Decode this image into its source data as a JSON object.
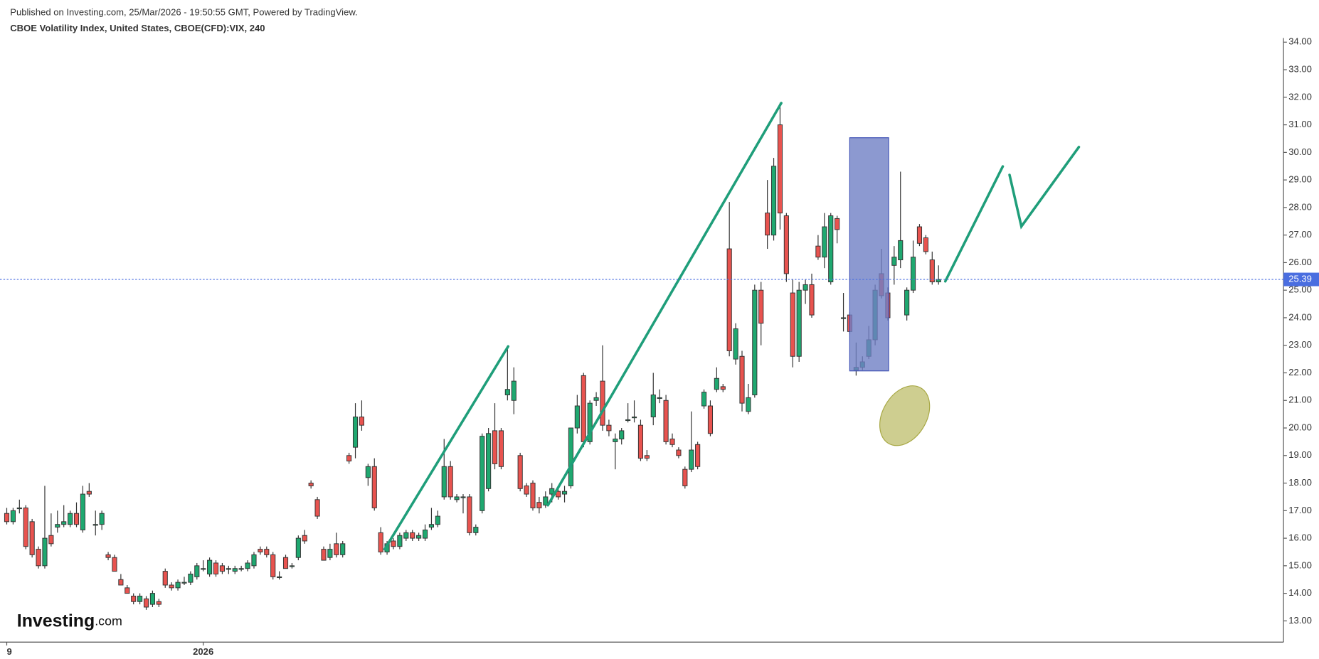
{
  "header": {
    "published": "Published on Investing.com, 25/Mar/2026 - 19:50:55 GMT, Powered by TradingView.",
    "symbol": "CBOE Volatility Index, United States, CBOE(CFD):VIX, 240"
  },
  "logo": {
    "name": "Investing",
    "suffix": ".com"
  },
  "chart_data": {
    "type": "candlestick",
    "up_color": "#1fa870",
    "down_color": "#e8534f",
    "last_price": 25.39,
    "last_price_color": "#4a6ee0",
    "ylim": [
      12.23,
      34.15
    ],
    "yticks": [
      {
        "value": 13,
        "label": "13.00"
      },
      {
        "value": 14,
        "label": "14.00"
      },
      {
        "value": 15,
        "label": "15.00"
      },
      {
        "value": 16,
        "label": "16.00"
      },
      {
        "value": 17,
        "label": "17.00"
      },
      {
        "value": 18,
        "label": "18.00"
      },
      {
        "value": 19,
        "label": "19.00"
      },
      {
        "value": 20,
        "label": "20.00"
      },
      {
        "value": 21,
        "label": "21.00"
      },
      {
        "value": 22,
        "label": "22.00"
      },
      {
        "value": 23,
        "label": "23.00"
      },
      {
        "value": 24,
        "label": "24.00"
      },
      {
        "value": 25,
        "label": "25.00"
      },
      {
        "value": 26,
        "label": "26.00"
      },
      {
        "value": 27,
        "label": "27.00"
      },
      {
        "value": 28,
        "label": "28.00"
      },
      {
        "value": 29,
        "label": "29.00"
      },
      {
        "value": 30,
        "label": "30.00"
      },
      {
        "value": 31,
        "label": "31.00"
      },
      {
        "value": 32,
        "label": "32.00"
      },
      {
        "value": 33,
        "label": "33.00"
      },
      {
        "value": 34,
        "label": "34.00"
      }
    ],
    "categories": [
      "9",
      null,
      null,
      null,
      null,
      null,
      null,
      null,
      null,
      null,
      null,
      null,
      null,
      null,
      null,
      null,
      null,
      null,
      null,
      null,
      null,
      null,
      null,
      null,
      null,
      null,
      null,
      null,
      null,
      null,
      null,
      "2026",
      null,
      null,
      null,
      null,
      null,
      null,
      null,
      null,
      null,
      null,
      null,
      null,
      null,
      null,
      null,
      null,
      null,
      null,
      null,
      null,
      null,
      null,
      null,
      null,
      null,
      null,
      null,
      null,
      null,
      null,
      null,
      null,
      null,
      null,
      null,
      null,
      null,
      null,
      null,
      null,
      null,
      null,
      null,
      null,
      null,
      null,
      null,
      null,
      null,
      null,
      null,
      null,
      null,
      null,
      null,
      null,
      null,
      null,
      null,
      null,
      null,
      null,
      null,
      null,
      null,
      null,
      null,
      null,
      null,
      null,
      null,
      null,
      null,
      null,
      null,
      null,
      null,
      null,
      null,
      null,
      null,
      null,
      null,
      null,
      null,
      null,
      null,
      null,
      null,
      null,
      null,
      null,
      null,
      null,
      null,
      null,
      null,
      null,
      null,
      null,
      null,
      null,
      null,
      null,
      null,
      null,
      null,
      null,
      null,
      null,
      null,
      null,
      null,
      null,
      null,
      null
    ],
    "ohlc": [
      [
        16.9,
        17.1,
        16.5,
        16.6
      ],
      [
        16.6,
        17.1,
        16.5,
        17.0
      ],
      [
        17.1,
        17.4,
        16.9,
        17.1
      ],
      [
        17.1,
        17.2,
        15.6,
        15.7
      ],
      [
        16.6,
        16.7,
        15.3,
        15.4
      ],
      [
        15.6,
        15.7,
        14.9,
        15.0
      ],
      [
        15.0,
        17.9,
        14.9,
        16.0
      ],
      [
        16.1,
        16.9,
        15.7,
        15.8
      ],
      [
        16.4,
        17.0,
        16.2,
        16.5
      ],
      [
        16.5,
        17.2,
        16.4,
        16.6
      ],
      [
        16.5,
        17.0,
        16.4,
        16.9
      ],
      [
        16.9,
        17.3,
        16.4,
        16.5
      ],
      [
        16.3,
        17.9,
        16.2,
        17.6
      ],
      [
        17.7,
        18.0,
        17.5,
        17.6
      ],
      [
        16.5,
        17.0,
        16.1,
        16.5
      ],
      [
        16.5,
        17.0,
        16.3,
        16.9
      ],
      [
        15.4,
        15.5,
        15.2,
        15.3
      ],
      [
        15.3,
        15.4,
        14.8,
        14.8
      ],
      [
        14.5,
        14.7,
        14.3,
        14.3
      ],
      [
        14.2,
        14.3,
        14.0,
        14.0
      ],
      [
        13.9,
        14.0,
        13.6,
        13.7
      ],
      [
        13.7,
        14.0,
        13.6,
        13.9
      ],
      [
        13.8,
        13.9,
        13.4,
        13.5
      ],
      [
        13.6,
        14.1,
        13.5,
        14.0
      ],
      [
        13.7,
        13.8,
        13.5,
        13.6
      ],
      [
        14.8,
        14.9,
        14.2,
        14.3
      ],
      [
        14.3,
        14.4,
        14.1,
        14.2
      ],
      [
        14.2,
        14.5,
        14.1,
        14.4
      ],
      [
        14.4,
        14.6,
        14.3,
        14.4
      ],
      [
        14.4,
        14.8,
        14.3,
        14.7
      ],
      [
        14.6,
        15.1,
        14.5,
        15.0
      ],
      [
        14.9,
        15.2,
        14.8,
        14.9
      ],
      [
        14.7,
        15.3,
        14.6,
        15.2
      ],
      [
        15.1,
        15.2,
        14.6,
        14.7
      ],
      [
        15.0,
        15.1,
        14.7,
        14.8
      ],
      [
        14.9,
        15.0,
        14.7,
        14.9
      ],
      [
        14.8,
        15.0,
        14.7,
        14.9
      ],
      [
        14.9,
        15.0,
        14.8,
        14.9
      ],
      [
        14.9,
        15.2,
        14.8,
        15.1
      ],
      [
        15.0,
        15.5,
        14.9,
        15.4
      ],
      [
        15.6,
        15.7,
        15.4,
        15.5
      ],
      [
        15.6,
        15.7,
        15.3,
        15.4
      ],
      [
        15.4,
        15.5,
        14.5,
        14.6
      ],
      [
        14.6,
        14.8,
        14.5,
        14.6
      ],
      [
        15.3,
        15.4,
        14.9,
        14.9
      ],
      [
        15.0,
        15.1,
        14.9,
        15.0
      ],
      [
        15.3,
        16.1,
        15.2,
        16.0
      ],
      [
        16.1,
        16.3,
        15.8,
        15.9
      ],
      [
        18.0,
        18.1,
        17.8,
        17.9
      ],
      [
        17.4,
        17.5,
        16.7,
        16.8
      ],
      [
        15.6,
        15.7,
        15.2,
        15.2
      ],
      [
        15.3,
        15.8,
        15.2,
        15.6
      ],
      [
        15.8,
        16.2,
        15.3,
        15.4
      ],
      [
        15.4,
        15.9,
        15.3,
        15.8
      ],
      [
        19.0,
        19.1,
        18.7,
        18.8
      ],
      [
        19.3,
        20.9,
        18.9,
        20.4
      ],
      [
        20.4,
        21.0,
        19.9,
        20.1
      ],
      [
        18.2,
        18.7,
        17.9,
        18.6
      ],
      [
        18.6,
        18.9,
        17.0,
        17.1
      ],
      [
        16.2,
        16.4,
        15.4,
        15.5
      ],
      [
        15.5,
        15.9,
        15.4,
        15.8
      ],
      [
        15.9,
        16.0,
        15.6,
        15.7
      ],
      [
        15.7,
        16.2,
        15.6,
        16.1
      ],
      [
        16.0,
        16.3,
        15.9,
        16.2
      ],
      [
        16.2,
        16.3,
        15.9,
        16.0
      ],
      [
        16.0,
        16.2,
        15.9,
        16.1
      ],
      [
        16.0,
        16.5,
        15.9,
        16.3
      ],
      [
        16.4,
        17.1,
        16.3,
        16.5
      ],
      [
        16.5,
        17.0,
        16.4,
        16.8
      ],
      [
        17.5,
        19.6,
        17.4,
        18.6
      ],
      [
        18.6,
        18.8,
        17.4,
        17.5
      ],
      [
        17.4,
        17.6,
        17.3,
        17.5
      ],
      [
        17.5,
        17.6,
        16.9,
        17.5
      ],
      [
        17.5,
        17.6,
        16.1,
        16.2
      ],
      [
        16.2,
        16.5,
        16.1,
        16.4
      ],
      [
        17.0,
        19.8,
        16.9,
        19.7
      ],
      [
        17.8,
        20.0,
        17.7,
        19.8
      ],
      [
        19.9,
        20.9,
        18.5,
        18.7
      ],
      [
        19.9,
        20.0,
        18.5,
        18.6
      ],
      [
        21.2,
        22.9,
        21.0,
        21.4
      ],
      [
        21.0,
        22.2,
        20.5,
        21.7
      ],
      [
        19.0,
        19.1,
        17.7,
        17.8
      ],
      [
        17.9,
        18.0,
        17.5,
        17.6
      ],
      [
        18.0,
        18.1,
        17.0,
        17.1
      ],
      [
        17.3,
        17.5,
        16.9,
        17.1
      ],
      [
        17.2,
        17.7,
        17.1,
        17.5
      ],
      [
        17.6,
        18.0,
        17.3,
        17.8
      ],
      [
        17.7,
        17.9,
        17.4,
        17.5
      ],
      [
        17.6,
        17.9,
        17.3,
        17.7
      ],
      [
        17.9,
        20.0,
        17.8,
        20.0
      ],
      [
        20.0,
        21.2,
        19.8,
        20.8
      ],
      [
        21.9,
        22.0,
        19.3,
        19.5
      ],
      [
        19.5,
        21.0,
        19.4,
        20.9
      ],
      [
        21.0,
        21.3,
        20.8,
        21.1
      ],
      [
        21.7,
        23.0,
        19.9,
        20.1
      ],
      [
        20.1,
        20.3,
        19.7,
        19.9
      ],
      [
        19.5,
        19.8,
        18.5,
        19.6
      ],
      [
        19.6,
        20.0,
        19.4,
        19.9
      ],
      [
        20.3,
        20.9,
        20.2,
        20.3
      ],
      [
        20.4,
        21.0,
        20.2,
        20.4
      ],
      [
        20.1,
        20.3,
        18.8,
        18.9
      ],
      [
        19.0,
        19.2,
        18.8,
        18.9
      ],
      [
        20.4,
        22.0,
        20.1,
        21.2
      ],
      [
        21.1,
        21.4,
        20.9,
        21.1
      ],
      [
        21.0,
        21.2,
        19.4,
        19.5
      ],
      [
        19.6,
        19.8,
        19.3,
        19.4
      ],
      [
        19.2,
        19.3,
        18.9,
        19.0
      ],
      [
        18.5,
        18.6,
        17.8,
        17.9
      ],
      [
        18.5,
        20.6,
        18.4,
        19.2
      ],
      [
        19.4,
        19.5,
        18.5,
        18.6
      ],
      [
        20.8,
        21.4,
        20.7,
        21.3
      ],
      [
        20.8,
        21.0,
        19.7,
        19.8
      ],
      [
        21.4,
        22.2,
        21.3,
        21.8
      ],
      [
        21.5,
        21.6,
        21.3,
        21.4
      ],
      [
        26.5,
        28.2,
        22.6,
        22.8
      ],
      [
        22.5,
        23.8,
        22.3,
        23.6
      ],
      [
        22.6,
        22.8,
        20.6,
        20.9
      ],
      [
        20.6,
        21.6,
        20.5,
        21.1
      ],
      [
        21.2,
        25.2,
        21.1,
        25.0
      ],
      [
        25.0,
        25.3,
        23.0,
        23.8
      ],
      [
        27.8,
        29.0,
        26.5,
        27.0
      ],
      [
        27.0,
        29.8,
        26.8,
        29.5
      ],
      [
        31.0,
        31.8,
        27.2,
        27.8
      ],
      [
        27.7,
        27.8,
        25.3,
        25.6
      ],
      [
        24.9,
        25.4,
        22.2,
        22.6
      ],
      [
        22.6,
        25.3,
        22.4,
        25.0
      ],
      [
        25.0,
        25.4,
        24.5,
        25.2
      ],
      [
        25.2,
        25.6,
        24.0,
        24.1
      ],
      [
        26.6,
        27.0,
        26.1,
        26.2
      ],
      [
        26.2,
        27.8,
        25.8,
        27.3
      ],
      [
        25.3,
        27.8,
        25.2,
        27.7
      ],
      [
        27.6,
        27.7,
        26.7,
        27.2
      ],
      [
        24.0,
        24.9,
        23.5,
        24.0
      ],
      [
        24.1,
        24.2,
        23.4,
        23.5
      ],
      [
        22.1,
        23.1,
        21.9,
        22.2
      ],
      [
        22.2,
        22.6,
        22.1,
        22.4
      ],
      [
        22.6,
        23.7,
        22.5,
        23.2
      ],
      [
        23.2,
        25.2,
        23.0,
        25.0
      ],
      [
        25.6,
        26.5,
        24.7,
        24.8
      ],
      [
        24.9,
        25.1,
        23.9,
        24.0
      ],
      [
        25.9,
        26.6,
        25.2,
        26.2
      ],
      [
        26.1,
        29.3,
        25.8,
        26.8
      ],
      [
        24.1,
        25.1,
        23.9,
        25.0
      ],
      [
        25.0,
        26.8,
        24.9,
        26.2
      ],
      [
        27.3,
        27.4,
        26.6,
        26.7
      ],
      [
        26.9,
        27.0,
        26.3,
        26.4
      ],
      [
        26.1,
        26.4,
        25.2,
        25.3
      ],
      [
        25.3,
        25.9,
        25.2,
        25.39
      ]
    ]
  }
}
